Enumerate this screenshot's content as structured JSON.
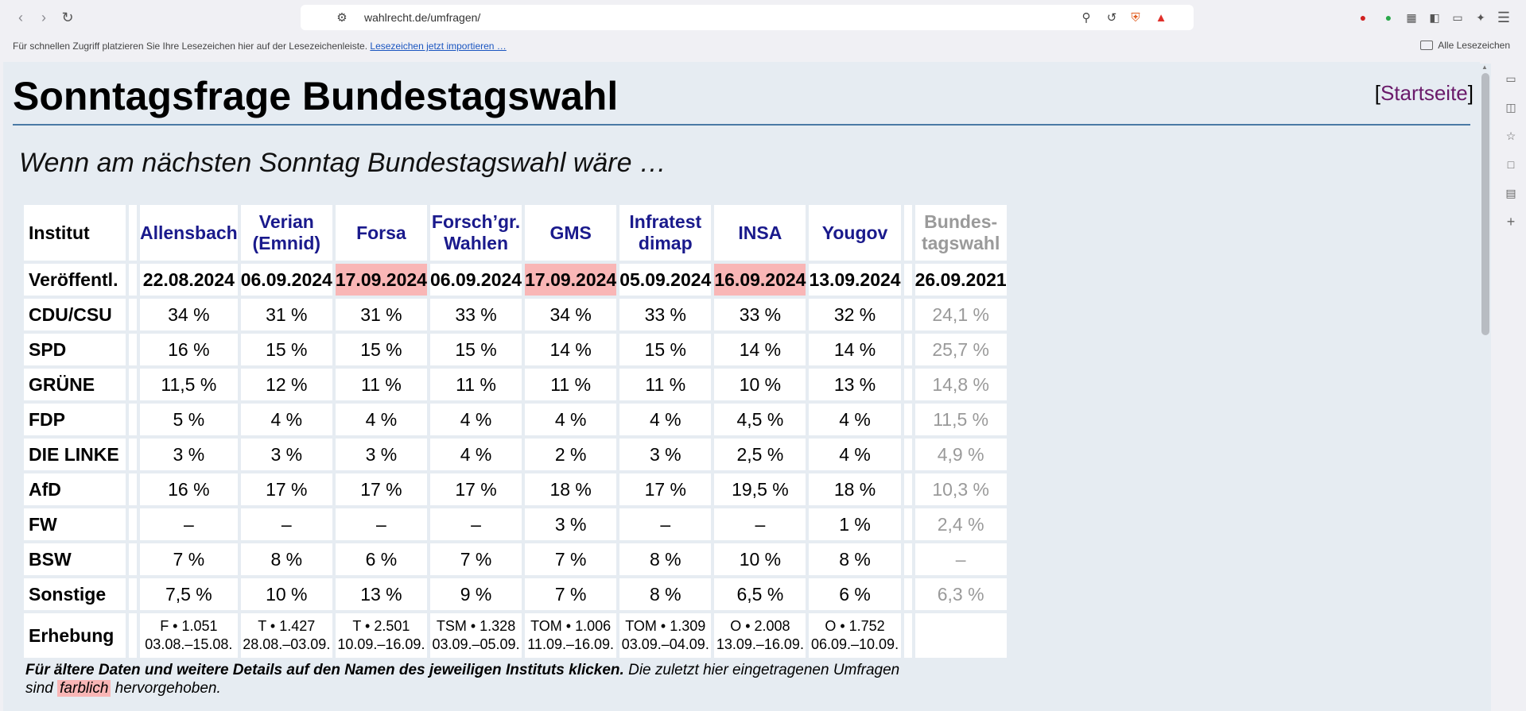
{
  "browser": {
    "url": "wahlrecht.de/umfragen/",
    "bookmarks_hint": "Für schnellen Zugriff platzieren Sie Ihre Lesezeichen hier auf der Lesezeichenleiste.",
    "bookmarks_import_link": "Lesezeichen jetzt importieren …",
    "all_bookmarks": "Alle Lesezeichen"
  },
  "page": {
    "title": "Sonntagsfrage Bundestagswahl",
    "home_link": "Startseite",
    "home_bracket_open": "[",
    "home_bracket_close": "]",
    "subtitle": "Wenn am nächsten Sonntag Bundestagswahl wäre …"
  },
  "table": {
    "institut_label": "Institut",
    "published_label": "Veröffentl.",
    "survey_label": "Erhebung",
    "institutes": [
      {
        "name1": "Allensbach",
        "name2": "",
        "date": "22.08.2024",
        "highlight": false,
        "erh1": "F • 1.051",
        "erh2": "03.08.–15.08."
      },
      {
        "name1": "Verian",
        "name2": "(Emnid)",
        "date": "06.09.2024",
        "highlight": false,
        "erh1": "T • 1.427",
        "erh2": "28.08.–03.09."
      },
      {
        "name1": "Forsa",
        "name2": "",
        "date": "17.09.2024",
        "highlight": true,
        "erh1": "T • 2.501",
        "erh2": "10.09.–16.09."
      },
      {
        "name1": "Forsch’gr.",
        "name2": "Wahlen",
        "date": "06.09.2024",
        "highlight": false,
        "erh1": "TSM • 1.328",
        "erh2": "03.09.–05.09."
      },
      {
        "name1": "GMS",
        "name2": "",
        "date": "17.09.2024",
        "highlight": true,
        "erh1": "TOM • 1.006",
        "erh2": "11.09.–16.09."
      },
      {
        "name1": "Infratest",
        "name2": "dimap",
        "date": "05.09.2024",
        "highlight": false,
        "erh1": "TOM • 1.309",
        "erh2": "03.09.–04.09."
      },
      {
        "name1": "INSA",
        "name2": "",
        "date": "16.09.2024",
        "highlight": true,
        "erh1": "O • 2.008",
        "erh2": "13.09.–16.09."
      },
      {
        "name1": "Yougov",
        "name2": "",
        "date": "13.09.2024",
        "highlight": false,
        "erh1": "O • 1.752",
        "erh2": "06.09.–10.09."
      }
    ],
    "reference": {
      "name1": "Bundes-",
      "name2": "tagswahl",
      "date": "26.09.2021"
    },
    "parties": [
      {
        "name": "CDU/CSU",
        "values": [
          "34 %",
          "31 %",
          "31 %",
          "33 %",
          "34 %",
          "33 %",
          "33 %",
          "32 %"
        ],
        "ref": "24,1 %"
      },
      {
        "name": "SPD",
        "values": [
          "16 %",
          "15 %",
          "15 %",
          "15 %",
          "14 %",
          "15 %",
          "14 %",
          "14 %"
        ],
        "ref": "25,7 %"
      },
      {
        "name": "GRÜNE",
        "values": [
          "11,5 %",
          "12 %",
          "11 %",
          "11 %",
          "11 %",
          "11 %",
          "10 %",
          "13 %"
        ],
        "ref": "14,8 %"
      },
      {
        "name": "FDP",
        "values": [
          "5 %",
          "4 %",
          "4 %",
          "4 %",
          "4 %",
          "4 %",
          "4,5 %",
          "4 %"
        ],
        "ref": "11,5 %"
      },
      {
        "name": "DIE LINKE",
        "values": [
          "3 %",
          "3 %",
          "3 %",
          "4 %",
          "2 %",
          "3 %",
          "2,5 %",
          "4 %"
        ],
        "ref": "4,9 %"
      },
      {
        "name": "AfD",
        "values": [
          "16 %",
          "17 %",
          "17 %",
          "17 %",
          "18 %",
          "17 %",
          "19,5 %",
          "18 %"
        ],
        "ref": "10,3 %"
      },
      {
        "name": "FW",
        "values": [
          "–",
          "–",
          "–",
          "–",
          "3 %",
          "–",
          "–",
          "1 %"
        ],
        "ref": "2,4 %"
      },
      {
        "name": "BSW",
        "values": [
          "7 %",
          "8 %",
          "6 %",
          "7 %",
          "7 %",
          "8 %",
          "10 %",
          "8 %"
        ],
        "ref": "–"
      },
      {
        "name": "Sonstige",
        "values": [
          "7,5 %",
          "10 %",
          "13 %",
          "9 %",
          "7 %",
          "8 %",
          "6,5 %",
          "6 %"
        ],
        "ref": "6,3 %"
      }
    ]
  },
  "footnote": {
    "bold": "Für ältere Daten und weitere Details auf den Namen des jeweiligen Instituts klicken.",
    "normal": "Die zuletzt hier eingetragenen Umfragen sind",
    "highlight": "farblich",
    "end": "hervorgehoben."
  },
  "colors": {
    "highlight": "#f9b6b6",
    "institute_link": "#1a1a8c",
    "reference_gray": "#9a9a9a",
    "page_bg": "#e6ecf2"
  }
}
